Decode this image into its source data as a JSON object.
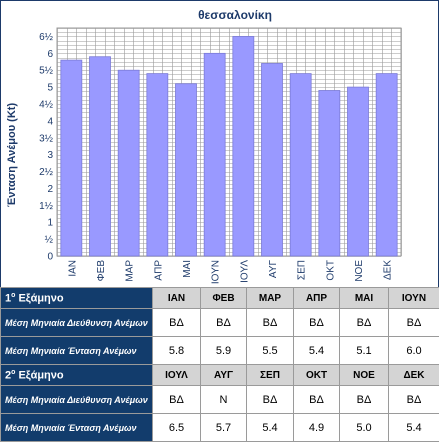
{
  "chart_data": {
    "type": "bar",
    "title": "θεσσαλονίκη",
    "ylabel": "Ένταση Ανέμου (Kt)",
    "xlabel": "",
    "categories": [
      "ΙΑΝ",
      "ΦΕΒ",
      "ΜΑΡ",
      "ΑΠΡ",
      "ΜΑΙ",
      "ΙΟΥΝ",
      "ΙΟΥΛ",
      "ΑΥΓ",
      "ΣΕΠ",
      "ΟΚΤ",
      "ΝΟΕ",
      "ΔΕΚ"
    ],
    "values": [
      5.8,
      5.9,
      5.5,
      5.4,
      5.1,
      6.0,
      6.5,
      5.7,
      5.4,
      4.9,
      5.0,
      5.4
    ],
    "ylim": [
      0,
      6.75
    ],
    "ytick_values": [
      0,
      0.5,
      1,
      1.5,
      2,
      2.5,
      3,
      3.5,
      4,
      4.5,
      5,
      5.5,
      6,
      6.5
    ],
    "ytick_labels": [
      "0",
      "½",
      "1",
      "1½",
      "2",
      "2½",
      "3",
      "3½",
      "4",
      "4½",
      "5",
      "5½",
      "6",
      "6½"
    ],
    "grid": true,
    "colors": {
      "bar": "#9999ff",
      "bar_edge": "#7b7bd6",
      "grid": "#9a9a9a",
      "title": "#1d3a6a"
    }
  },
  "table": {
    "semester1": {
      "label_num": "1",
      "label_sup": "ο",
      "label_rest": " Εξάμηνο",
      "months": [
        "ΙΑΝ",
        "ΦΕΒ",
        "ΜΑΡ",
        "ΑΠΡ",
        "ΜΑΙ",
        "ΙΟΥΝ"
      ],
      "direction_label": "Μέση Μηνιαία Διεύθυνση Ανέμων",
      "directions": [
        "ΒΔ",
        "ΒΔ",
        "ΒΔ",
        "ΒΔ",
        "ΒΔ",
        "ΒΔ"
      ],
      "intensity_label": "Μέση Μηνιαία Ένταση Ανέμων",
      "intensities": [
        "5.8",
        "5.9",
        "5.5",
        "5.4",
        "5.1",
        "6.0"
      ]
    },
    "semester2": {
      "label_num": "2",
      "label_sup": "ο",
      "label_rest": " Εξάμηνο",
      "months": [
        "ΙΟΥΛ",
        "ΑΥΓ",
        "ΣΕΠ",
        "ΟΚΤ",
        "ΝΟΕ",
        "ΔΕΚ"
      ],
      "direction_label": "Μέση Μηνιαία Διεύθυνση Ανέμων",
      "directions": [
        "ΒΔ",
        "Ν",
        "ΒΔ",
        "ΒΔ",
        "ΒΔ",
        "ΒΔ"
      ],
      "intensity_label": "Μέση Μηνιαία Ένταση Ανέμων",
      "intensities": [
        "6.5",
        "5.7",
        "5.4",
        "4.9",
        "5.0",
        "5.4"
      ]
    }
  }
}
